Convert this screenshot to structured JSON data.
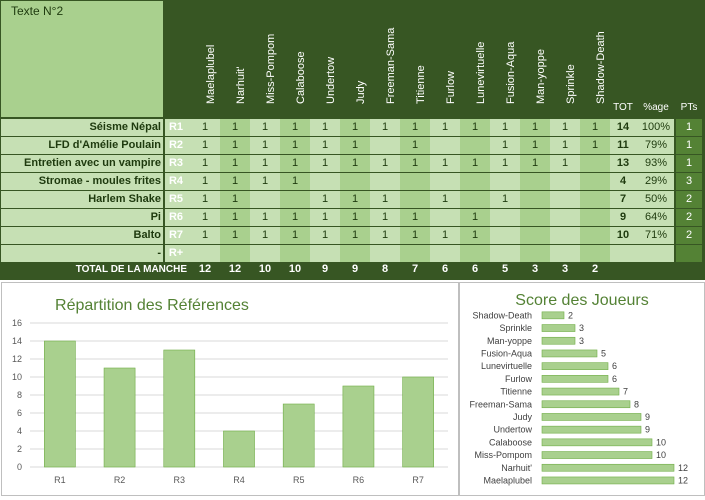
{
  "header": {
    "title": "Texte    N°2"
  },
  "players": [
    "Maelaplubel",
    "Narhuit'",
    "Miss-Pompom",
    "Calaboose",
    "Undertow",
    "Judy",
    "Freeman-Sama",
    "Titienne",
    "Furlow",
    "Lunevirtuelle",
    "Fusion-Aqua",
    "Man-yoppe",
    "Sprinkle",
    "Shadow-Death"
  ],
  "column_headers": {
    "tot": "TOT",
    "pct": "%age",
    "pts": "PTs"
  },
  "rounds": [
    {
      "label": "Séisme Népal",
      "id": "R1",
      "cells": [
        "1",
        "1",
        "1",
        "1",
        "1",
        "1",
        "1",
        "1",
        "1",
        "1",
        "1",
        "1",
        "1",
        "1"
      ],
      "tot": "14",
      "pct": "100%",
      "pts": "1"
    },
    {
      "label": "LFD d'Amélie Poulain",
      "id": "R2",
      "cells": [
        "1",
        "1",
        "1",
        "1",
        "1",
        "1",
        "",
        "1",
        "",
        "",
        "1",
        "1",
        "1",
        "1"
      ],
      "tot": "11",
      "pct": "79%",
      "pts": "1"
    },
    {
      "label": "Entretien avec un vampire",
      "id": "R3",
      "cells": [
        "1",
        "1",
        "1",
        "1",
        "1",
        "1",
        "1",
        "1",
        "1",
        "1",
        "1",
        "1",
        "1",
        ""
      ],
      "tot": "13",
      "pct": "93%",
      "pts": "1"
    },
    {
      "label": "Stromae - moules frites",
      "id": "R4",
      "cells": [
        "1",
        "1",
        "1",
        "1",
        "",
        "",
        "",
        "",
        "",
        "",
        "",
        "",
        "",
        ""
      ],
      "tot": "4",
      "pct": "29%",
      "pts": "3"
    },
    {
      "label": "Harlem Shake",
      "id": "R5",
      "cells": [
        "1",
        "1",
        "",
        "",
        "1",
        "1",
        "1",
        "",
        "1",
        "",
        "1",
        "",
        "",
        ""
      ],
      "tot": "7",
      "pct": "50%",
      "pts": "2"
    },
    {
      "label": "Pi",
      "id": "R6",
      "cells": [
        "1",
        "1",
        "1",
        "1",
        "1",
        "1",
        "1",
        "1",
        "",
        "1",
        "",
        "",
        "",
        ""
      ],
      "tot": "9",
      "pct": "64%",
      "pts": "2"
    },
    {
      "label": "Balto",
      "id": "R7",
      "cells": [
        "1",
        "1",
        "1",
        "1",
        "1",
        "1",
        "1",
        "1",
        "1",
        "1",
        "",
        "",
        "",
        ""
      ],
      "tot": "10",
      "pct": "71%",
      "pts": "2"
    },
    {
      "label": "-",
      "id": "R+",
      "cells": [
        "",
        "",
        "",
        "",
        "",
        "",
        "",
        "",
        "",
        "",
        "",
        "",
        "",
        ""
      ],
      "tot": "",
      "pct": "",
      "pts": ""
    }
  ],
  "totals": {
    "label": "TOTAL DE LA MANCHE",
    "values": [
      "12",
      "12",
      "10",
      "10",
      "9",
      "9",
      "8",
      "7",
      "6",
      "6",
      "5",
      "3",
      "3",
      "2"
    ]
  },
  "chart_data": [
    {
      "type": "bar",
      "title": "Répartition  des Références",
      "categories": [
        "R1",
        "R2",
        "R3",
        "R4",
        "R5",
        "R6",
        "R7"
      ],
      "values": [
        14,
        11,
        13,
        4,
        7,
        9,
        10
      ],
      "ylim": [
        0,
        16
      ],
      "yticks": [
        0,
        2,
        4,
        6,
        8,
        10,
        12,
        14,
        16
      ],
      "grid": true,
      "color": "#a9d08e"
    },
    {
      "type": "bar",
      "orientation": "horizontal",
      "title": "Score des Joueurs",
      "categories": [
        "Shadow-Death",
        "Sprinkle",
        "Man-yoppe",
        "Fusion-Aqua",
        "Lunevirtuelle",
        "Furlow",
        "Titienne",
        "Freeman-Sama",
        "Judy",
        "Undertow",
        "Calaboose",
        "Miss-Pompom",
        "Narhuit'",
        "Maelaplubel"
      ],
      "values": [
        2,
        3,
        3,
        5,
        6,
        6,
        7,
        8,
        9,
        9,
        10,
        10,
        12,
        12
      ],
      "xlim": [
        0,
        14
      ],
      "color": "#a9d08e"
    }
  ]
}
